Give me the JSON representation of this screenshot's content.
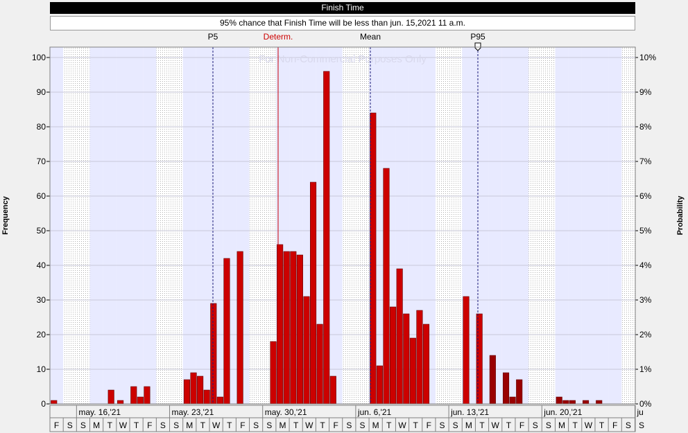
{
  "header": {
    "title": "Finish Time",
    "subtitle": "95% chance that Finish Time will be less than jun. 15,2021 11 a.m."
  },
  "markers": [
    {
      "id": "p5",
      "label": "P5",
      "date": "may. 24,21",
      "color": "#000000"
    },
    {
      "id": "determ",
      "label": "Determ.",
      "date": "may. 29,21",
      "color": "#cc0000"
    },
    {
      "id": "mean",
      "label": "Mean",
      "date": "jun. 6,21",
      "color": "#000000"
    },
    {
      "id": "p95",
      "label": "P95",
      "date": "jun. 15,21",
      "color": "#000000"
    }
  ],
  "watermark": "For Non-Commercial Purposes Only",
  "colors": {
    "bar": "#cc0000",
    "bar_dark": "#990000",
    "plot_band": "#e8eaff",
    "weekend": "#ffffff"
  },
  "chart_data": {
    "type": "bar",
    "title": "Finish Time",
    "ylabel": "Frequency",
    "y2label": "Probability",
    "ylim": [
      0,
      100
    ],
    "y2lim": [
      0,
      10
    ],
    "yticks": [
      "0",
      "10",
      "20",
      "30",
      "40",
      "50",
      "60",
      "70",
      "80",
      "90",
      "100"
    ],
    "y2ticks": [
      "0%",
      "1%",
      "2%",
      "3%",
      "4%",
      "5%",
      "6%",
      "7%",
      "8%",
      "9%",
      "10%"
    ],
    "week_labels": [
      "may. 16,'21",
      "may. 23,'21",
      "may. 30,'21",
      "jun. 6,'21",
      "jun. 13,'21",
      "jun. 20,'21",
      "ju"
    ],
    "day_letters": [
      "F",
      "S",
      "S",
      "M",
      "T",
      "W",
      "T",
      "F",
      "S",
      "S",
      "M",
      "T",
      "W",
      "T",
      "F",
      "S",
      "S",
      "M",
      "T",
      "W",
      "T",
      "F",
      "S",
      "S",
      "M",
      "T",
      "W",
      "T",
      "F",
      "S",
      "S",
      "M",
      "T",
      "W",
      "T",
      "F",
      "S",
      "S",
      "M",
      "T",
      "W",
      "T",
      "F",
      "S",
      "S"
    ],
    "start_date": "may. 14,21",
    "bars": [
      {
        "day": 0,
        "frac": 0.3,
        "value": 1
      },
      {
        "day": 4,
        "frac": 0.6,
        "value": 4
      },
      {
        "day": 5,
        "frac": 0.3,
        "value": 1
      },
      {
        "day": 6,
        "frac": 0.3,
        "value": 5
      },
      {
        "day": 6,
        "frac": 0.8,
        "value": 2
      },
      {
        "day": 7,
        "frac": 0.3,
        "value": 5
      },
      {
        "day": 10,
        "frac": 0.3,
        "value": 7
      },
      {
        "day": 10,
        "frac": 0.8,
        "value": 9
      },
      {
        "day": 11,
        "frac": 0.3,
        "value": 8
      },
      {
        "day": 11,
        "frac": 0.8,
        "value": 4
      },
      {
        "day": 12,
        "frac": 0.3,
        "value": 29
      },
      {
        "day": 12,
        "frac": 0.8,
        "value": 2
      },
      {
        "day": 13,
        "frac": 0.3,
        "value": 42
      },
      {
        "day": 14,
        "frac": 0.3,
        "value": 44
      },
      {
        "day": 16,
        "frac": 0.8,
        "value": 18
      },
      {
        "day": 17,
        "frac": 0.3,
        "value": 46
      },
      {
        "day": 17,
        "frac": 0.8,
        "value": 44
      },
      {
        "day": 18,
        "frac": 0.3,
        "value": 44
      },
      {
        "day": 18,
        "frac": 0.8,
        "value": 43
      },
      {
        "day": 19,
        "frac": 0.3,
        "value": 31
      },
      {
        "day": 19,
        "frac": 0.8,
        "value": 64
      },
      {
        "day": 20,
        "frac": 0.3,
        "value": 23
      },
      {
        "day": 20,
        "frac": 0.8,
        "value": 96
      },
      {
        "day": 21,
        "frac": 0.3,
        "value": 8
      },
      {
        "day": 24,
        "frac": 0.3,
        "value": 84
      },
      {
        "day": 24,
        "frac": 0.8,
        "value": 11
      },
      {
        "day": 25,
        "frac": 0.3,
        "value": 68
      },
      {
        "day": 25,
        "frac": 0.8,
        "value": 28
      },
      {
        "day": 26,
        "frac": 0.3,
        "value": 39
      },
      {
        "day": 26,
        "frac": 0.8,
        "value": 26
      },
      {
        "day": 27,
        "frac": 0.3,
        "value": 19
      },
      {
        "day": 27,
        "frac": 0.8,
        "value": 27
      },
      {
        "day": 28,
        "frac": 0.3,
        "value": 23
      },
      {
        "day": 31,
        "frac": 0.3,
        "value": 31
      },
      {
        "day": 32,
        "frac": 0.3,
        "value": 26
      },
      {
        "day": 33,
        "frac": 0.3,
        "value": 14,
        "dark": true
      },
      {
        "day": 34,
        "frac": 0.3,
        "value": 9,
        "dark": true
      },
      {
        "day": 34,
        "frac": 0.8,
        "value": 2,
        "dark": true
      },
      {
        "day": 35,
        "frac": 0.3,
        "value": 7,
        "dark": true
      },
      {
        "day": 38,
        "frac": 0.3,
        "value": 2,
        "dark": true
      },
      {
        "day": 38,
        "frac": 0.8,
        "value": 1,
        "dark": true
      },
      {
        "day": 39,
        "frac": 0.3,
        "value": 1,
        "dark": true
      },
      {
        "day": 40,
        "frac": 0.3,
        "value": 1,
        "dark": true
      },
      {
        "day": 41,
        "frac": 0.3,
        "value": 1,
        "dark": true
      }
    ],
    "grid": true
  }
}
